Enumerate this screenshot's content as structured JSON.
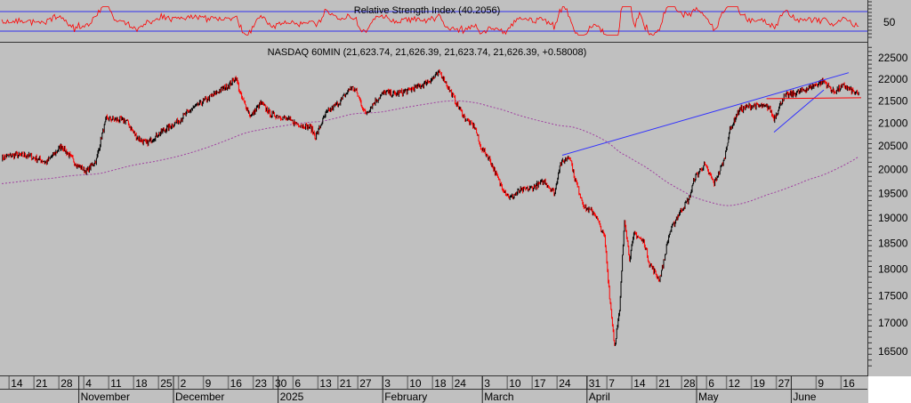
{
  "chart_data": [
    {
      "type": "line",
      "title": "Relative Strength Index (40.2056)",
      "indicator": "RSI",
      "last_value": 40.2056,
      "levels": [
        30,
        70
      ],
      "ytick_labels": [
        "50"
      ],
      "ylim": [
        0,
        100
      ],
      "color": "#ff0000",
      "level_color": "#6060e0"
    },
    {
      "type": "candlestick",
      "title": "NASDAQ 60MIN (21,623.74, 21,626.39, 21,623.74, 21,626.39, +0.58008)",
      "symbol": "NASDAQ",
      "interval": "60MIN",
      "last": {
        "open": 21623.74,
        "high": 21626.39,
        "low": 21623.74,
        "close": 21626.39,
        "change": 0.58008
      },
      "yscale": "log",
      "ylim": [
        16200,
        22800
      ],
      "ytick_labels": [
        "22500",
        "22000",
        "21500",
        "21000",
        "20500",
        "20000",
        "19500",
        "19000",
        "18500",
        "18000",
        "17500",
        "17000",
        "16500"
      ],
      "yticks": [
        22500,
        22000,
        21500,
        21000,
        20500,
        20000,
        19500,
        19000,
        18500,
        18000,
        17500,
        17000,
        16500
      ],
      "xtick_labels": [
        "14",
        "21",
        "28",
        "4",
        "11",
        "18",
        "25",
        "2",
        "9",
        "16",
        "23",
        "30",
        "6",
        "13",
        "21",
        "27",
        "3",
        "10",
        "18",
        "24",
        "3",
        "10",
        "17",
        "24",
        "31",
        "7",
        "14",
        "21",
        "28",
        "6",
        "12",
        "19",
        "27",
        "9",
        "16"
      ],
      "xtick_days": [
        2,
        7,
        12,
        17,
        22,
        27,
        32,
        36,
        41,
        46,
        51,
        55,
        59,
        64,
        68,
        72,
        77,
        82,
        87,
        91,
        97,
        102,
        107,
        112,
        118,
        122,
        127,
        132,
        137,
        142,
        146,
        151,
        156,
        164,
        169
      ],
      "month_labels": [
        "November",
        "December",
        "2025",
        "February",
        "March",
        "April",
        "May",
        "June"
      ],
      "month_days": [
        16,
        35,
        56,
        77,
        97,
        118,
        140,
        159
      ],
      "close_by_trading_day": [
        [
          0,
          20250
        ],
        [
          2,
          20300
        ],
        [
          5,
          20300
        ],
        [
          9,
          20150
        ],
        [
          12,
          20500
        ],
        [
          15,
          20100
        ],
        [
          17,
          19950
        ],
        [
          19,
          20200
        ],
        [
          20,
          20700
        ],
        [
          21,
          21100
        ],
        [
          25,
          21050
        ],
        [
          27,
          20700
        ],
        [
          29,
          20550
        ],
        [
          32,
          20800
        ],
        [
          36,
          21100
        ],
        [
          38,
          21300
        ],
        [
          42,
          21600
        ],
        [
          46,
          21900
        ],
        [
          47,
          22050
        ],
        [
          48,
          21600
        ],
        [
          50,
          21150
        ],
        [
          52,
          21450
        ],
        [
          54,
          21200
        ],
        [
          56,
          21150
        ],
        [
          59,
          21000
        ],
        [
          62,
          20900
        ],
        [
          63,
          20700
        ],
        [
          65,
          21200
        ],
        [
          68,
          21500
        ],
        [
          70,
          21800
        ],
        [
          71,
          21750
        ],
        [
          73,
          21200
        ],
        [
          75,
          21500
        ],
        [
          77,
          21700
        ],
        [
          79,
          21650
        ],
        [
          82,
          21750
        ],
        [
          85,
          21900
        ],
        [
          88,
          22150
        ],
        [
          89,
          21950
        ],
        [
          91,
          21500
        ],
        [
          93,
          21100
        ],
        [
          95,
          20900
        ],
        [
          96,
          20500
        ],
        [
          98,
          20200
        ],
        [
          100,
          19700
        ],
        [
          102,
          19400
        ],
        [
          104,
          19550
        ],
        [
          106,
          19600
        ],
        [
          109,
          19750
        ],
        [
          111,
          19500
        ],
        [
          112,
          20100
        ],
        [
          114,
          20300
        ],
        [
          115,
          19800
        ],
        [
          117,
          19200
        ],
        [
          119,
          19100
        ],
        [
          121,
          18600
        ],
        [
          122,
          17500
        ],
        [
          123,
          16600
        ],
        [
          124,
          17200
        ],
        [
          125,
          19000
        ],
        [
          126,
          18200
        ],
        [
          127,
          18700
        ],
        [
          129,
          18500
        ],
        [
          130,
          18100
        ],
        [
          132,
          17800
        ],
        [
          133,
          18200
        ],
        [
          134,
          18700
        ],
        [
          136,
          19100
        ],
        [
          138,
          19400
        ],
        [
          139,
          19800
        ],
        [
          141,
          20100
        ],
        [
          143,
          19700
        ],
        [
          145,
          20200
        ],
        [
          146,
          20800
        ],
        [
          148,
          21300
        ],
        [
          151,
          21400
        ],
        [
          154,
          21350
        ],
        [
          155,
          21100
        ],
        [
          157,
          21600
        ],
        [
          160,
          21700
        ],
        [
          162,
          21800
        ],
        [
          165,
          21950
        ],
        [
          167,
          21700
        ],
        [
          169,
          21850
        ],
        [
          171,
          21700
        ],
        [
          172,
          21626.39
        ]
      ],
      "moving_average": {
        "style": "dotted",
        "color": "#a040a0"
      },
      "trendlines": [
        {
          "color": "#3030ff",
          "from": [
            112.5,
            20300
          ],
          "to": [
            170,
            22150
          ]
        },
        {
          "color": "#3030ff",
          "from": [
            155,
            20800
          ],
          "to": [
            165,
            21750
          ]
        },
        {
          "color": "#ff0000",
          "from": [
            153.5,
            21550
          ],
          "to": [
            172.5,
            21570
          ]
        }
      ],
      "up_color": "#000000",
      "down_color": "#ff0000"
    }
  ]
}
